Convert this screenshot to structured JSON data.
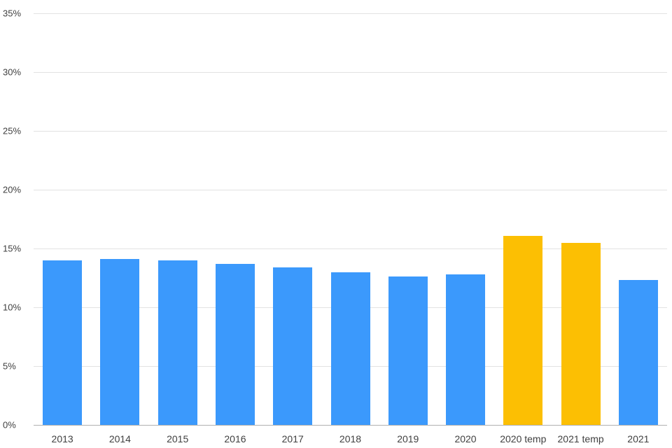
{
  "chart_data": {
    "type": "bar",
    "title": "",
    "xlabel": "",
    "ylabel": "",
    "categories": [
      "2013",
      "2014",
      "2015",
      "2016",
      "2017",
      "2018",
      "2019",
      "2020",
      "2020 temp",
      "2021 temp",
      "2021"
    ],
    "values": [
      14.0,
      14.1,
      14.0,
      13.7,
      13.4,
      13.0,
      12.6,
      12.8,
      16.1,
      15.5,
      12.3
    ],
    "unit": "%",
    "ylim": [
      0,
      35
    ],
    "ytick_step": 5,
    "ytick_labels": [
      "0%",
      "5%",
      "10%",
      "15%",
      "20%",
      "25%",
      "30%",
      "35%"
    ],
    "grid": true,
    "legend": false,
    "bar_colors": [
      "blue",
      "blue",
      "blue",
      "blue",
      "blue",
      "blue",
      "blue",
      "blue",
      "yellow",
      "yellow",
      "blue"
    ],
    "colors": {
      "blue": "#3b99fc",
      "yellow": "#fcbf03"
    }
  }
}
